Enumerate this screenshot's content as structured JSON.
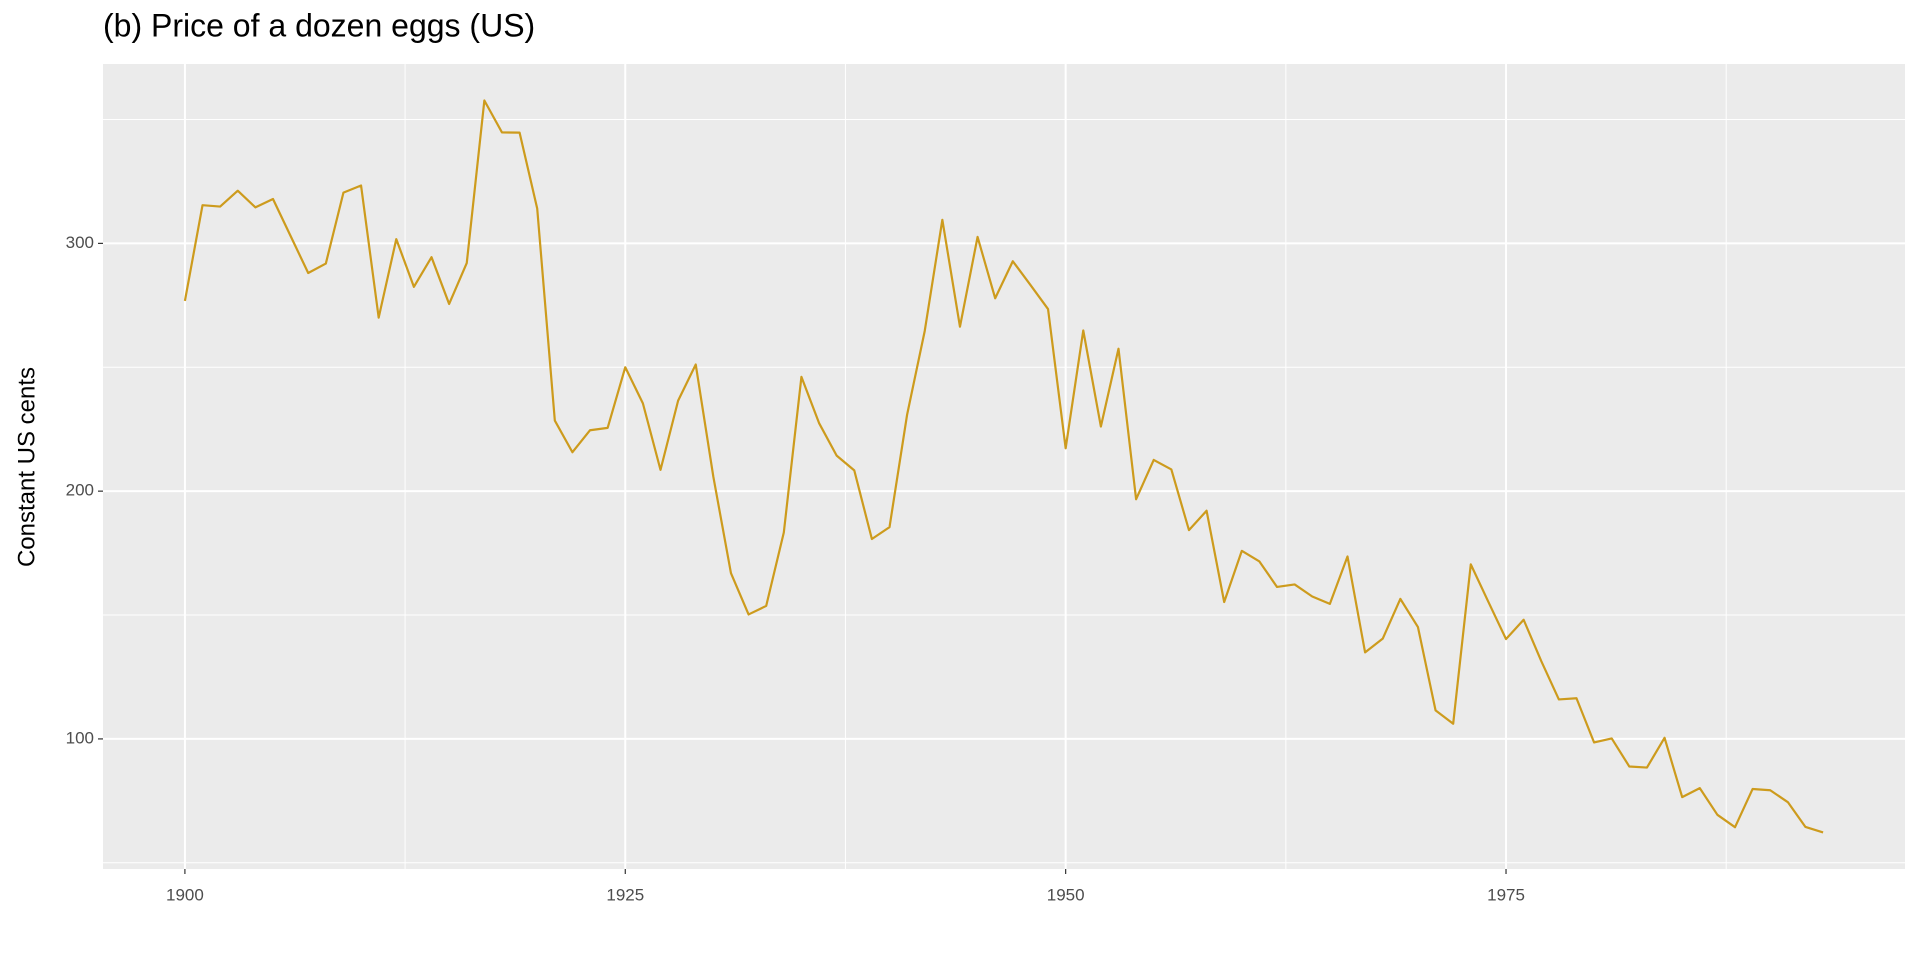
{
  "chart_data": {
    "type": "line",
    "title": "(b) Price of a dozen eggs (US)",
    "y_label": "Constant US cents",
    "x": [
      1900,
      1901,
      1902,
      1903,
      1904,
      1905,
      1906,
      1907,
      1908,
      1909,
      1910,
      1911,
      1912,
      1913,
      1914,
      1915,
      1916,
      1917,
      1918,
      1919,
      1920,
      1921,
      1922,
      1923,
      1924,
      1925,
      1926,
      1927,
      1928,
      1929,
      1930,
      1931,
      1932,
      1933,
      1934,
      1935,
      1936,
      1937,
      1938,
      1939,
      1940,
      1941,
      1942,
      1943,
      1944,
      1945,
      1946,
      1947,
      1948,
      1949,
      1950,
      1951,
      1952,
      1953,
      1954,
      1955,
      1956,
      1957,
      1958,
      1959,
      1960,
      1961,
      1962,
      1963,
      1964,
      1965,
      1966,
      1967,
      1968,
      1969,
      1970,
      1971,
      1972,
      1973,
      1974,
      1975,
      1976,
      1977,
      1978,
      1979,
      1980,
      1981,
      1982,
      1983,
      1984,
      1985,
      1986,
      1987,
      1988,
      1989,
      1990,
      1991,
      1992,
      1993
    ],
    "series": [
      {
        "color": "#cd9b1d",
        "values": [
          276.79,
          315.42,
          314.87,
          321.25,
          314.54,
          317.92,
          302.97,
          288.06,
          291.86,
          320.47,
          323.36,
          270.04,
          301.71,
          282.45,
          294.43,
          275.56,
          292.05,
          357.67,
          344.79,
          344.71,
          314.06,
          228.48,
          215.71,
          224.59,
          225.55,
          250.01,
          235.42,
          208.59,
          236.53,
          251.1,
          205.77,
          166.87,
          150.24,
          153.68,
          183.32,
          246.13,
          227.49,
          214.33,
          208.39,
          180.68,
          185.47,
          230.9,
          264.65,
          309.5,
          266.38,
          302.61,
          277.85,
          292.8,
          283.23,
          273.5,
          217.3,
          264.84,
          226.08,
          257.5,
          196.74,
          212.6,
          208.77,
          184.27,
          192.1,
          155.26,
          175.9,
          171.62,
          161.34,
          162.34,
          157.49,
          154.49,
          173.64,
          134.91,
          140.46,
          156.52,
          145.13,
          111.53,
          106.13,
          170.45,
          155.29,
          140.3,
          148.1,
          131.41,
          115.93,
          116.41,
          98.56,
          100.2,
          88.86,
          88.45,
          100.46,
          76.52,
          80.13,
          69.37,
          64.37,
          79.8,
          79.28,
          74.48,
          64.47,
          62.27
        ]
      }
    ],
    "xlim": [
      1895.35,
      1997.65
    ],
    "xticks": [
      1900,
      1925,
      1950,
      1975
    ],
    "ylim": [
      47.5,
      372.4
    ],
    "yticks": [
      100,
      200,
      300
    ],
    "grid": true
  }
}
